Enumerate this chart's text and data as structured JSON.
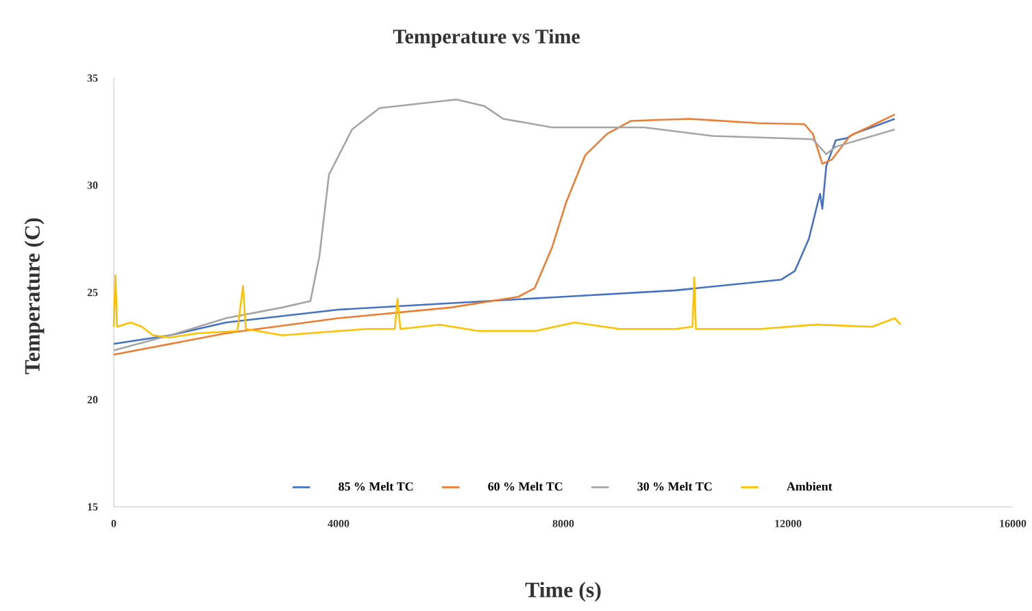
{
  "chart_data": {
    "type": "line",
    "title": "Temperature vs Time",
    "xlabel": "Time (s)",
    "ylabel": "Temperature (C)",
    "xlim": [
      0,
      16000
    ],
    "xticks": [
      0,
      4000,
      8000,
      12000,
      16000
    ],
    "ylim": [
      15,
      35
    ],
    "yticks": [
      15,
      20,
      25,
      30,
      35
    ],
    "grid": false,
    "legend": "bottom",
    "marker": "none",
    "line_style": "solid",
    "series": [
      {
        "name": "85 % Melt TC",
        "color": "#4472c4",
        "x": [
          0,
          1000,
          2000,
          4000,
          6000,
          8000,
          10000,
          11880,
          12120,
          12370,
          12530,
          12570,
          12610,
          12680,
          12850,
          13050,
          13170,
          13900
        ],
        "values": [
          22.6,
          23.0,
          23.6,
          24.2,
          24.5,
          24.8,
          25.1,
          25.6,
          26.0,
          27.5,
          29.2,
          29.6,
          28.9,
          30.9,
          32.1,
          32.2,
          32.4,
          33.1
        ]
      },
      {
        "name": "60 % Melt TC",
        "color": "#ed7d31",
        "x": [
          0,
          2000,
          4000,
          6000,
          7200,
          7490,
          7800,
          8050,
          8390,
          8780,
          9200,
          10240,
          11460,
          12290,
          12440,
          12610,
          12780,
          13100,
          13900
        ],
        "values": [
          22.1,
          23.1,
          23.8,
          24.3,
          24.8,
          25.2,
          27.1,
          29.2,
          31.4,
          32.4,
          33.0,
          33.1,
          32.9,
          32.85,
          32.4,
          31.0,
          31.2,
          32.3,
          33.3
        ]
      },
      {
        "name": "30 % Melt TC",
        "color": "#a5a5a5",
        "x": [
          0,
          1000,
          2000,
          3000,
          3500,
          3660,
          3830,
          4240,
          4730,
          6100,
          6590,
          6930,
          7800,
          9440,
          10660,
          12440,
          12680,
          12850,
          13900
        ],
        "values": [
          22.3,
          23.0,
          23.8,
          24.3,
          24.6,
          26.7,
          30.5,
          32.6,
          33.6,
          34.0,
          33.7,
          33.1,
          32.7,
          32.7,
          32.3,
          32.15,
          31.45,
          31.8,
          32.6
        ]
      },
      {
        "name": "Ambient",
        "color": "#ffc000",
        "x": [
          0,
          30,
          60,
          300,
          500,
          700,
          1000,
          1500,
          2200,
          2300,
          2350,
          3000,
          4000,
          4500,
          5000,
          5050,
          5100,
          5800,
          6500,
          7500,
          8200,
          9000,
          10000,
          10300,
          10330,
          10360,
          11500,
          12500,
          13500,
          13900,
          14000
        ],
        "values": [
          23.4,
          25.8,
          23.4,
          23.6,
          23.4,
          23.0,
          22.9,
          23.1,
          23.2,
          25.3,
          23.3,
          23.0,
          23.2,
          23.3,
          23.3,
          24.7,
          23.3,
          23.5,
          23.2,
          23.2,
          23.6,
          23.3,
          23.3,
          23.4,
          25.7,
          23.3,
          23.3,
          23.5,
          23.4,
          23.8,
          23.5
        ]
      }
    ]
  }
}
